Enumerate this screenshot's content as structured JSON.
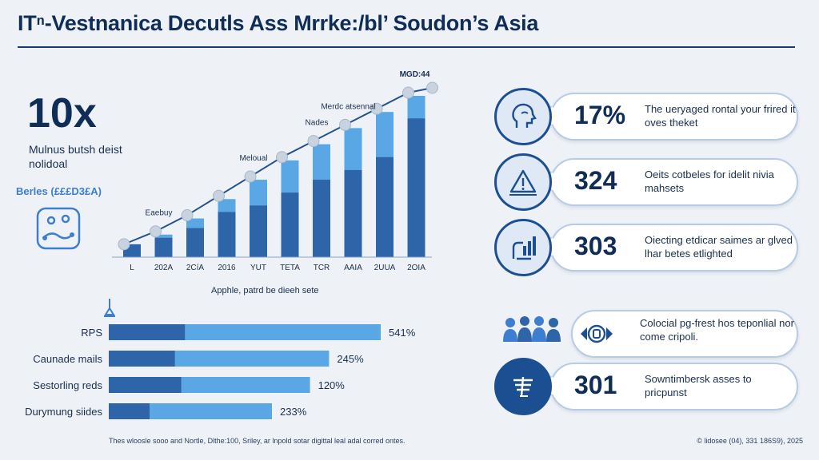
{
  "title": "ITⁿ-Vestnanica Decutls Ass Mrrke:/bl’ Soudon’s Asia",
  "left_panel": {
    "big_stat": "10x",
    "big_desc": "Mulnus butsh deist nolidoal",
    "series_label": "Berles (£££D3£A)"
  },
  "chart_data": [
    {
      "type": "bar",
      "categories": [
        "L",
        "202A",
        "2CíA",
        "2016",
        "YUT",
        "TETA",
        "TCR",
        "AAIA",
        "2UUA",
        "2OIA"
      ],
      "series": [
        {
          "values": [
            8,
            12,
            18,
            28,
            32,
            40,
            48,
            54,
            62,
            86
          ]
        },
        {
          "values": [
            6,
            14,
            24,
            36,
            48,
            60,
            70,
            80,
            90,
            100
          ]
        }
      ],
      "line": [
        6,
        14,
        24,
        36,
        48,
        60,
        70,
        80,
        90,
        100
      ],
      "annotations": [
        {
          "index": 1,
          "text": "Eaebuy"
        },
        {
          "index": 4,
          "text": "Meloual"
        },
        {
          "index": 6,
          "text": "Nades"
        },
        {
          "index": 7,
          "text": "Merdc atsennal"
        },
        {
          "index": 9,
          "text": "MGD:44"
        }
      ],
      "caption": "Apphle, patrd be dieeh sete",
      "colors": {
        "dark": "#2e64a8",
        "light": "#5aa7e6",
        "line": "#24528f",
        "marker": "#c9d3df"
      }
    },
    {
      "type": "bar",
      "orientation": "horizontal",
      "categories": [
        "RPS",
        "Caunade mails",
        "Sestorling reds",
        "Durymung siides"
      ],
      "values": [
        541,
        245,
        120,
        233
      ],
      "value_labels": [
        "541%",
        "245%",
        "120%",
        "233%"
      ],
      "dark_fraction": [
        0.28,
        0.3,
        0.36,
        0.25
      ],
      "bar_length": [
        1.0,
        0.81,
        0.74,
        0.6
      ],
      "colors": {
        "dark": "#2e64a8",
        "light": "#5aa7e6"
      }
    }
  ],
  "cards": [
    {
      "number": "17%",
      "text": "The ueryaged rontal your frired it oves theket",
      "icon": "person-head-icon"
    },
    {
      "number": "324",
      "text": "Oeits cotbeles for idelit nivia mahsets",
      "icon": "warning-triangle-icon"
    },
    {
      "number": "303",
      "text": "Oiecting etdicar saimes ar glved lhar betes etlighted",
      "icon": "hand-graph-icon"
    },
    {
      "number": "",
      "text": "Colocial pg-frest hos teponlial nor come cripoli.",
      "icon": "coin-icon"
    },
    {
      "number": "301",
      "text": "Sowntimbersk asses to pricpunst",
      "icon": "list-rack-icon"
    }
  ],
  "footnote": "Thes wloosle sooo and Nortle, Dlthe:100, Sriley, ar lnpold sotar digittal leal adal corred ontes.",
  "copyright": "© lidosee (04), 331 186S9), 2025"
}
